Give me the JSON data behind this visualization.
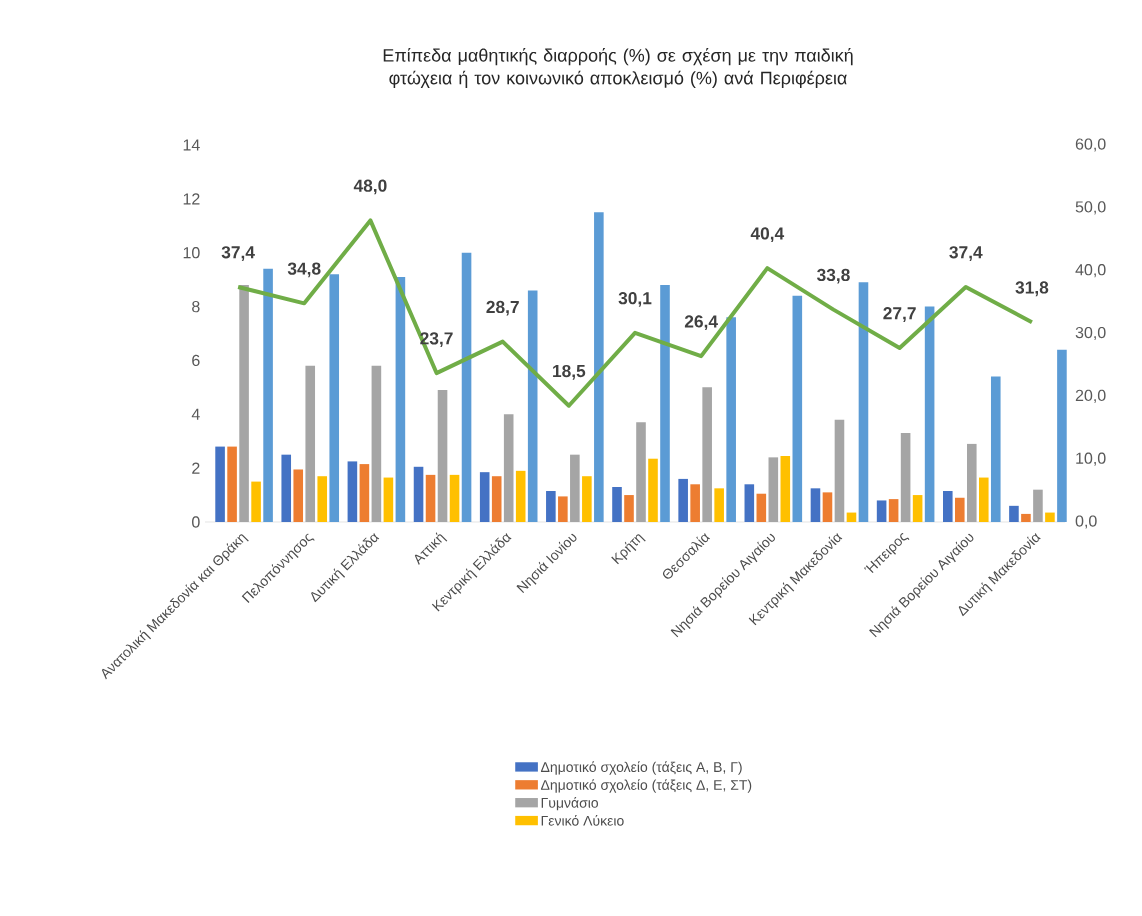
{
  "chart_data": {
    "type": "bar",
    "title": "Επίπεδα μαθητικής διαρροής (%) σε σχέση με την παιδική φτώχεια ή τον κοινωνικό αποκλεισμό (%) ανά Περιφέρεια",
    "categories": [
      "Ανατολική Μακεδονία και Θράκη",
      "Πελοπόννησος",
      "Δυτική Ελλάδα",
      "Αττική",
      "Κεντρική Ελλάδα",
      "Νησιά Ιονίου",
      "Κρήτη",
      "Θεσσαλία",
      "Νησιά Βορείου Αιγαίου",
      "Κεντρική Μακεδονία",
      "Ήπειρος",
      "Νησιά Βορείου Αιγαίου",
      "Δυτική Μακεδονία"
    ],
    "series": [
      {
        "name": "Δημοτικό σχολείο (τάξεις Α, Β, Γ)",
        "color": "#4472c4",
        "values": [
          2.8,
          2.5,
          2.25,
          2.05,
          1.85,
          1.15,
          1.3,
          1.6,
          1.4,
          1.25,
          0.8,
          1.15,
          0.6
        ]
      },
      {
        "name": "Δημοτικό σχολείο (τάξεις Δ, Ε, ΣΤ)",
        "color": "#ed7d31",
        "values": [
          2.8,
          1.95,
          2.15,
          1.75,
          1.7,
          0.95,
          1.0,
          1.4,
          1.05,
          1.1,
          0.85,
          0.9,
          0.3
        ]
      },
      {
        "name": "Γυμνάσιο",
        "color": "#a5a5a5",
        "values": [
          8.8,
          5.8,
          5.8,
          4.9,
          4.0,
          2.5,
          3.7,
          5.0,
          2.4,
          3.8,
          3.3,
          2.9,
          1.2
        ]
      },
      {
        "name": "Γενικό Λύκειο",
        "color": "#ffc000",
        "values": [
          1.5,
          1.7,
          1.65,
          1.75,
          1.9,
          1.7,
          2.35,
          1.25,
          2.45,
          0.35,
          1.0,
          1.65,
          0.35
        ]
      },
      {
        "color": "#5b9bd5",
        "values": [
          9.4,
          9.2,
          9.1,
          10.0,
          8.6,
          11.5,
          8.8,
          7.6,
          8.4,
          8.9,
          8.0,
          5.4,
          6.4
        ]
      },
      {
        "type": "line",
        "axis": "y2",
        "color": "#70ad47",
        "values": [
          37.4,
          34.8,
          48.0,
          23.7,
          28.7,
          18.5,
          30.1,
          26.4,
          40.4,
          33.8,
          27.7,
          37.4,
          31.8
        ],
        "value_labels": [
          "37,4",
          "34,8",
          "48,0",
          "23,7",
          "28,7",
          "18,5",
          "30,1",
          "26,4",
          "40,4",
          "33,8",
          "27,7",
          "37,4",
          "31,8"
        ]
      }
    ],
    "ylim": [
      0,
      14
    ],
    "yticks": [
      0,
      2,
      4,
      6,
      8,
      10,
      12,
      14
    ],
    "y2lim": [
      0,
      60
    ],
    "y2ticks": [
      {
        "value": 0,
        "label": "0,0"
      },
      {
        "value": 10,
        "label": "10,0"
      },
      {
        "value": 20,
        "label": "20,0"
      },
      {
        "value": 30,
        "label": "30,0"
      },
      {
        "value": 40,
        "label": "40,0"
      },
      {
        "value": 50,
        "label": "50,0"
      },
      {
        "value": 60,
        "label": "60,0"
      }
    ],
    "legend": "bottom",
    "grid": false
  }
}
